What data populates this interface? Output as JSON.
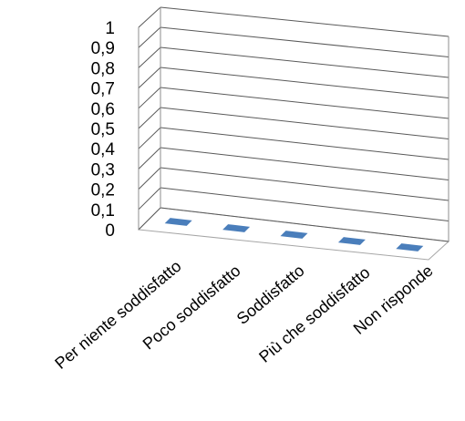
{
  "chart_data": {
    "type": "bar",
    "categories": [
      "Per niente soddisfatto",
      "Poco soddisfatto",
      "Soddisfatto",
      "Più che soddisfatto",
      "Non risponde"
    ],
    "values": [
      0,
      0,
      0,
      0,
      0
    ],
    "yticks": [
      "0",
      "0,1",
      "0,2",
      "0,3",
      "0,4",
      "0,5",
      "0,6",
      "0,7",
      "0,8",
      "0,9",
      "1"
    ],
    "ylim": [
      0,
      1
    ],
    "grid": true,
    "legend": "none",
    "colors": {
      "bar": "#4a7ebb",
      "bar_side": "#3a659a",
      "grid": "#595959"
    }
  }
}
